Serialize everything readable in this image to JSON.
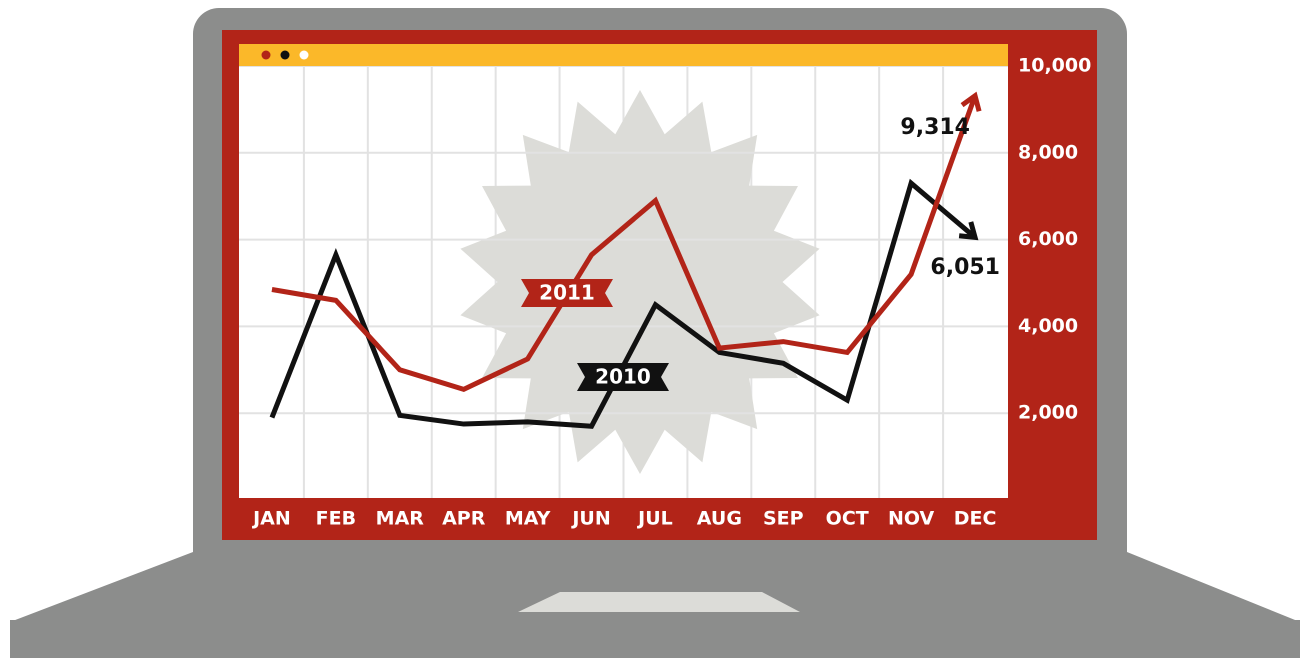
{
  "chart_data": {
    "type": "line",
    "categories": [
      "JAN",
      "FEB",
      "MAR",
      "APR",
      "MAY",
      "JUN",
      "JUL",
      "AUG",
      "SEP",
      "OCT",
      "NOV",
      "DEC"
    ],
    "series": [
      {
        "name": "2010",
        "color": "#111111",
        "values": [
          1900,
          5650,
          1950,
          1750,
          1800,
          1700,
          4500,
          3400,
          3150,
          2300,
          7300,
          6051
        ],
        "value_labels": [
          null,
          null,
          null,
          null,
          null,
          null,
          null,
          null,
          null,
          null,
          null,
          "6,051"
        ]
      },
      {
        "name": "2011",
        "color": "#b22418",
        "values": [
          4850,
          4600,
          3000,
          2550,
          3250,
          5650,
          6900,
          3500,
          3650,
          3400,
          5200,
          9314
        ],
        "value_labels": [
          null,
          null,
          null,
          null,
          null,
          null,
          null,
          null,
          null,
          null,
          null,
          "9,314"
        ]
      }
    ],
    "ylim": [
      0,
      10000
    ],
    "yticks": [
      {
        "value": 2000,
        "label": "2,000"
      },
      {
        "value": 4000,
        "label": "4,000"
      },
      {
        "value": 6000,
        "label": "6,000"
      },
      {
        "value": 8000,
        "label": "8,000"
      },
      {
        "value": 10000,
        "label": "10,000"
      }
    ],
    "grid": true
  }
}
